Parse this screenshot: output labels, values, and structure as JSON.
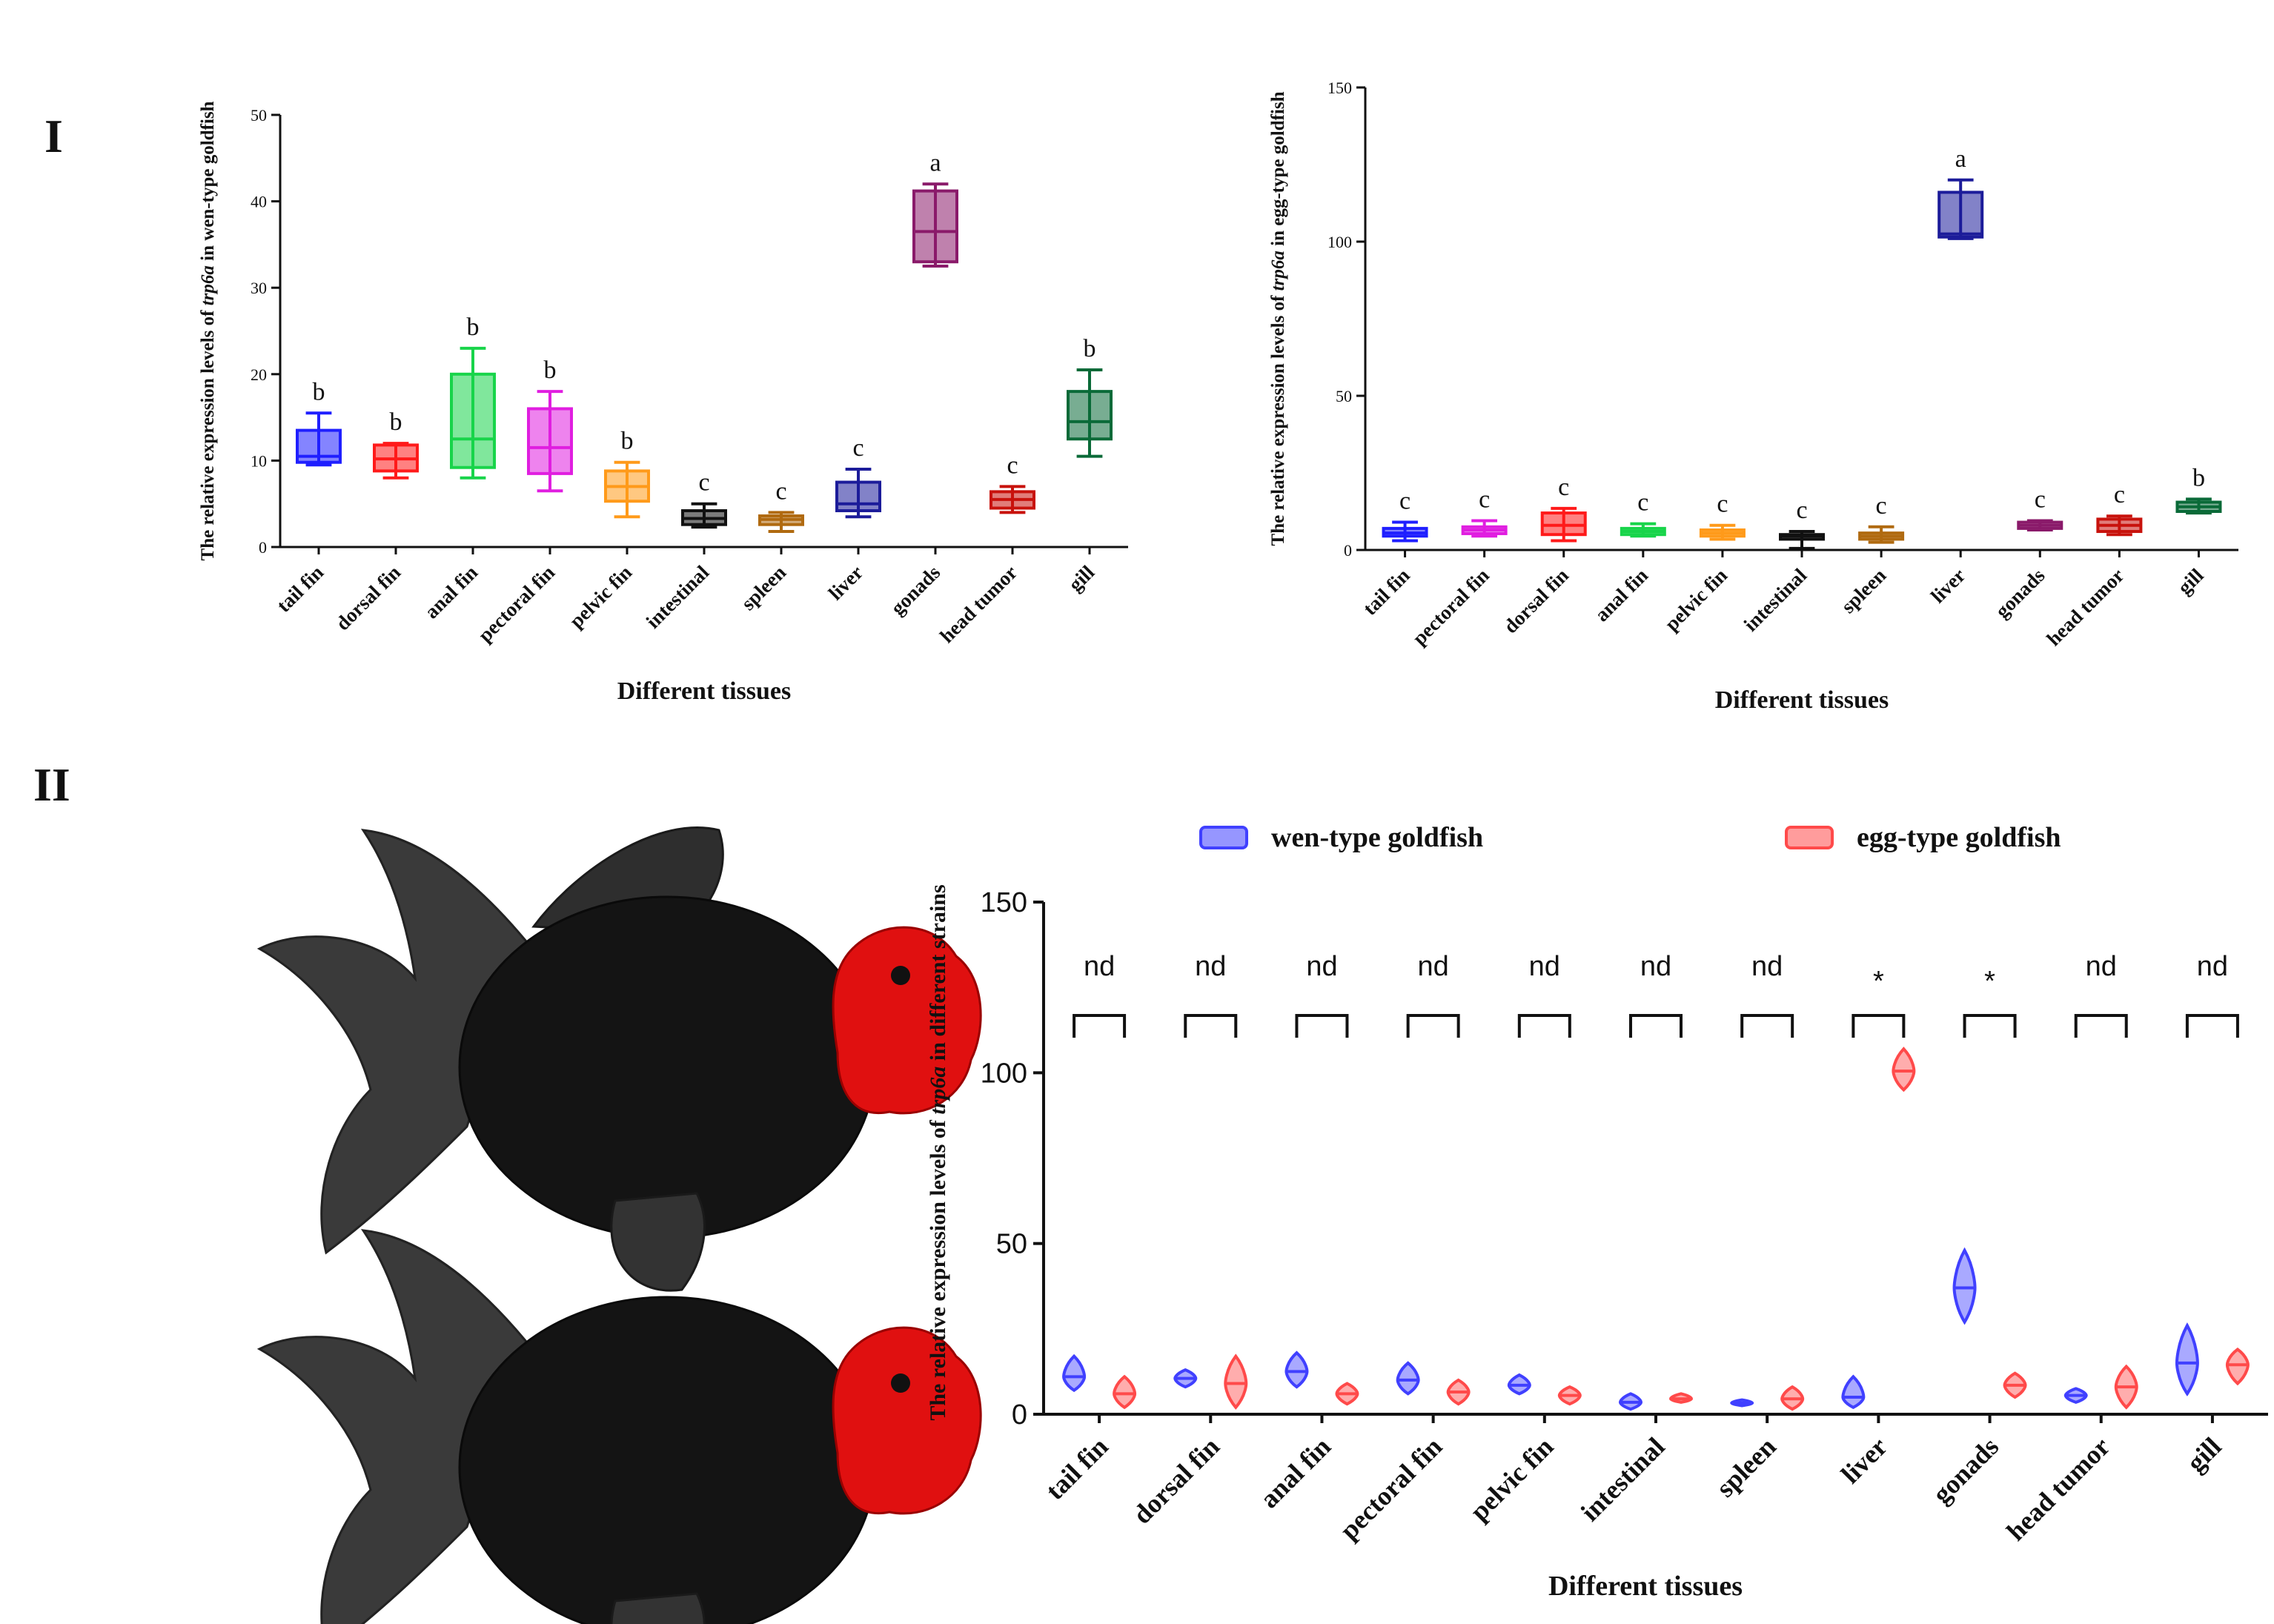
{
  "panels": {
    "top": "I",
    "bottom": "II"
  },
  "chart_data": [
    {
      "type": "box",
      "ylabel_pre": "The relative expression levels of ",
      "ylabel_gene": "trp6a",
      "ylabel_post": " in wen-type goldfish",
      "xlabel": "Different tissues",
      "ylim": [
        0,
        50
      ],
      "yticks": [
        "0",
        "10",
        "20",
        "30",
        "40",
        "50"
      ],
      "categories": [
        "tail fin",
        "dorsal fin",
        "anal fin",
        "pectoral fin",
        "pelvic fin",
        "intestinal",
        "spleen",
        "liver",
        "gonads",
        "head tumor",
        "gill"
      ],
      "colors": [
        "#1f1fff",
        "#ff1a1a",
        "#18d44a",
        "#e01ee0",
        "#ff9a1a",
        "#111111",
        "#b06a10",
        "#1c1c9a",
        "#8a1a6a",
        "#c8120c",
        "#0a6a38"
      ],
      "letters": [
        "b",
        "b",
        "b",
        "b",
        "b",
        "c",
        "c",
        "c",
        "a",
        "c",
        "b"
      ],
      "boxes": [
        {
          "min": 9.5,
          "q1": 9.8,
          "median": 10.5,
          "q3": 13.5,
          "max": 15.5
        },
        {
          "min": 8.0,
          "q1": 8.8,
          "median": 10.2,
          "q3": 11.8,
          "max": 12.0
        },
        {
          "min": 8.0,
          "q1": 9.2,
          "median": 12.5,
          "q3": 20.0,
          "max": 23.0
        },
        {
          "min": 6.5,
          "q1": 8.5,
          "median": 11.5,
          "q3": 16.0,
          "max": 18.0
        },
        {
          "min": 3.5,
          "q1": 5.3,
          "median": 7.0,
          "q3": 8.8,
          "max": 9.8
        },
        {
          "min": 2.3,
          "q1": 2.6,
          "median": 3.3,
          "q3": 4.2,
          "max": 5.0
        },
        {
          "min": 1.8,
          "q1": 2.6,
          "median": 3.2,
          "q3": 3.6,
          "max": 4.0
        },
        {
          "min": 3.5,
          "q1": 4.2,
          "median": 5.0,
          "q3": 7.5,
          "max": 9.0
        },
        {
          "min": 32.5,
          "q1": 33.0,
          "median": 36.5,
          "q3": 41.2,
          "max": 42.0
        },
        {
          "min": 4.0,
          "q1": 4.5,
          "median": 5.5,
          "q3": 6.4,
          "max": 7.0
        },
        {
          "min": 10.5,
          "q1": 12.5,
          "median": 14.5,
          "q3": 18.0,
          "max": 20.5
        }
      ]
    },
    {
      "type": "box",
      "ylabel_pre": "The relative expression levels of ",
      "ylabel_gene": "trp6a",
      "ylabel_post": " in egg-type goldfish",
      "xlabel": "Different tissues",
      "ylim": [
        0,
        150
      ],
      "yticks": [
        "0",
        "50",
        "100",
        "150"
      ],
      "categories": [
        "tail fin",
        "pectoral fin",
        "dorsal fin",
        "anal fin",
        "pelvic fin",
        "intestinal",
        "spleen",
        "liver",
        "gonads",
        "head tumor",
        "gill"
      ],
      "colors": [
        "#1f1fff",
        "#e01ee0",
        "#ff1a1a",
        "#18d44a",
        "#ff9a1a",
        "#111111",
        "#b06a10",
        "#1c1c9a",
        "#8a1a6a",
        "#c8120c",
        "#0a6a38"
      ],
      "letters": [
        "c",
        "c",
        "c",
        "c",
        "c",
        "c",
        "c",
        "a",
        "c",
        "c",
        "b"
      ],
      "boxes": [
        {
          "min": 3.0,
          "q1": 4.5,
          "median": 5.5,
          "q3": 7.0,
          "max": 9.0
        },
        {
          "min": 4.5,
          "q1": 5.3,
          "median": 6.5,
          "q3": 7.5,
          "max": 9.5
        },
        {
          "min": 3.0,
          "q1": 5.0,
          "median": 8.0,
          "q3": 12.0,
          "max": 13.5
        },
        {
          "min": 4.5,
          "q1": 5.0,
          "median": 6.0,
          "q3": 7.0,
          "max": 8.5
        },
        {
          "min": 3.5,
          "q1": 4.5,
          "median": 5.5,
          "q3": 6.5,
          "max": 8.0
        },
        {
          "min": 0.5,
          "q1": 3.5,
          "median": 4.5,
          "q3": 5.0,
          "max": 6.0
        },
        {
          "min": 2.5,
          "q1": 3.5,
          "median": 4.5,
          "q3": 5.5,
          "max": 7.5
        },
        {
          "min": 101.0,
          "q1": 101.5,
          "median": 102.5,
          "q3": 116.0,
          "max": 120.0
        },
        {
          "min": 6.5,
          "q1": 7.0,
          "median": 8.0,
          "q3": 9.0,
          "max": 9.5
        },
        {
          "min": 5.0,
          "q1": 6.0,
          "median": 8.0,
          "q3": 10.0,
          "max": 11.0
        },
        {
          "min": 12.0,
          "q1": 12.5,
          "median": 14.0,
          "q3": 15.5,
          "max": 16.5
        }
      ]
    },
    {
      "type": "violin",
      "ylabel_pre": "The relative expression levels of ",
      "ylabel_gene": "trp6a",
      "ylabel_post": " in different strains",
      "xlabel": "Different tissues",
      "ylim": [
        0,
        150
      ],
      "yticks": [
        "0",
        "50",
        "100",
        "150"
      ],
      "categories": [
        "tail fin",
        "dorsal fin",
        "anal fin",
        "pectoral fin",
        "pelvic fin",
        "intestinal",
        "spleen",
        "liver",
        "gonads",
        "head tumor",
        "gill"
      ],
      "legend": [
        "wen-type goldfish",
        "egg-type goldfish"
      ],
      "colors": [
        "#4040ff",
        "#ff4a4a"
      ],
      "significance": [
        "nd",
        "nd",
        "nd",
        "nd",
        "nd",
        "nd",
        "nd",
        "*",
        "*",
        "nd",
        "nd"
      ],
      "series": [
        {
          "name": "wen-type goldfish",
          "violins": [
            {
              "min": 7,
              "median": 11,
              "max": 17
            },
            {
              "min": 8,
              "median": 10.5,
              "max": 13
            },
            {
              "min": 8,
              "median": 12.5,
              "max": 18
            },
            {
              "min": 6,
              "median": 10,
              "max": 15
            },
            {
              "min": 6,
              "median": 8.5,
              "max": 11.5
            },
            {
              "min": 1.5,
              "median": 3.5,
              "max": 6
            },
            {
              "min": 2.5,
              "median": 3.3,
              "max": 4.2
            },
            {
              "min": 2,
              "median": 5,
              "max": 11
            },
            {
              "min": 27,
              "median": 37,
              "max": 48
            },
            {
              "min": 3.5,
              "median": 5.5,
              "max": 7.5
            },
            {
              "min": 6,
              "median": 15,
              "max": 26
            }
          ]
        },
        {
          "name": "egg-type goldfish",
          "violins": [
            {
              "min": 2,
              "median": 6,
              "max": 11
            },
            {
              "min": 2,
              "median": 9,
              "max": 17
            },
            {
              "min": 3,
              "median": 6,
              "max": 9
            },
            {
              "min": 3,
              "median": 6.5,
              "max": 10
            },
            {
              "min": 3,
              "median": 5.5,
              "max": 8
            },
            {
              "min": 3.5,
              "median": 4.5,
              "max": 6
            },
            {
              "min": 1.5,
              "median": 4.5,
              "max": 8
            },
            {
              "min": 95,
              "median": 100.5,
              "max": 107
            },
            {
              "min": 5,
              "median": 8.5,
              "max": 12
            },
            {
              "min": 2,
              "median": 8,
              "max": 14
            },
            {
              "min": 9,
              "median": 14.5,
              "max": 19
            }
          ]
        }
      ]
    }
  ]
}
